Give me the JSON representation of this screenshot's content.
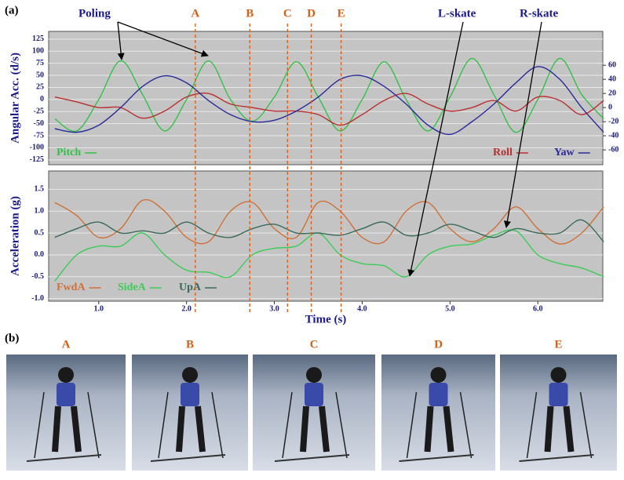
{
  "panel_labels": [
    "(a)",
    "(b)"
  ],
  "annotations": [
    "Poling",
    "L-skate",
    "R-skate"
  ],
  "events": [
    {
      "label": "A",
      "time": 2.1
    },
    {
      "label": "B",
      "time": 2.72
    },
    {
      "label": "C",
      "time": 3.15
    },
    {
      "label": "D",
      "time": 3.42
    },
    {
      "label": "E",
      "time": 3.76
    }
  ],
  "photos": [
    "A",
    "B",
    "C",
    "D",
    "E"
  ],
  "chart_data": [
    {
      "type": "line",
      "ylabel": "Angular Acc. (d/s)",
      "x": [
        0.5,
        0.75,
        1.0,
        1.25,
        1.5,
        1.75,
        2.0,
        2.25,
        2.5,
        2.75,
        3.0,
        3.25,
        3.5,
        3.75,
        4.0,
        4.25,
        4.5,
        4.75,
        5.0,
        5.25,
        5.5,
        5.75,
        6.0,
        6.25,
        6.5,
        6.75
      ],
      "xlim": [
        0.43,
        6.74
      ],
      "ylim": [
        -135,
        141
      ],
      "yticks": [
        125,
        100,
        75,
        50,
        25,
        0,
        -25,
        -50,
        -75,
        -100,
        -125
      ],
      "y2lim": [
        -81,
        108
      ],
      "y2ticks": [
        60,
        40,
        20,
        0,
        -20,
        -40,
        -60
      ],
      "grid": true,
      "series": [
        {
          "name": "Pitch",
          "color": "#35c04a",
          "values": [
            -40,
            -65,
            0,
            80,
            10,
            -65,
            0,
            80,
            0,
            -45,
            5,
            78,
            5,
            -65,
            0,
            78,
            0,
            -65,
            5,
            85,
            10,
            -68,
            0,
            85,
            10,
            -40
          ]
        },
        {
          "name": "Roll",
          "color": "#b83030",
          "axis": "y2",
          "values": [
            15,
            8,
            0,
            0,
            -15,
            -5,
            15,
            20,
            5,
            0,
            -5,
            -5,
            -10,
            -25,
            -10,
            10,
            20,
            5,
            -5,
            0,
            10,
            -5,
            15,
            10,
            -10,
            10
          ]
        },
        {
          "name": "Yaw",
          "color": "#2a2a9a",
          "axis": "y2",
          "values": [
            -30,
            -35,
            -25,
            0,
            30,
            45,
            35,
            10,
            -10,
            -20,
            -18,
            -5,
            15,
            40,
            45,
            30,
            5,
            -25,
            -38,
            -20,
            5,
            35,
            58,
            40,
            0,
            -35
          ]
        }
      ]
    },
    {
      "type": "line",
      "ylabel": "Acceleration (g)",
      "xlabel": "Time (s)",
      "x": [
        0.5,
        0.75,
        1.0,
        1.25,
        1.5,
        1.75,
        2.0,
        2.25,
        2.5,
        2.75,
        3.0,
        3.25,
        3.5,
        3.75,
        4.0,
        4.25,
        4.5,
        4.75,
        5.0,
        5.25,
        5.5,
        5.75,
        6.0,
        6.25,
        6.5,
        6.75
      ],
      "xlim": [
        0.43,
        6.74
      ],
      "xticks": [
        {
          "value": 1,
          "label": "1.0"
        },
        {
          "value": 2,
          "label": "2.0"
        },
        {
          "value": 3,
          "label": "3.0"
        },
        {
          "value": 4,
          "label": "4.0"
        },
        {
          "value": 5,
          "label": "5.0"
        },
        {
          "value": 6,
          "label": "6.0"
        }
      ],
      "ylim": [
        -1.06,
        1.92
      ],
      "yticks": [
        1.5,
        {
          "value": 1,
          "label": "1.0"
        },
        0.5,
        {
          "value": 0,
          "label": "0.0"
        },
        -0.5,
        {
          "value": -1,
          "label": "-1.0"
        }
      ],
      "grid": true,
      "series": [
        {
          "name": "FwdA",
          "color": "#d07038",
          "values": [
            1.2,
            0.9,
            0.4,
            0.6,
            1.25,
            1.0,
            0.4,
            0.3,
            1.0,
            1.2,
            0.6,
            0.4,
            1.2,
            1.0,
            0.4,
            0.3,
            1.0,
            1.2,
            0.6,
            0.3,
            0.6,
            1.1,
            0.6,
            0.25,
            0.5,
            1.1
          ]
        },
        {
          "name": "SideA",
          "color": "#3ccc58",
          "values": [
            -0.6,
            0.0,
            0.2,
            0.2,
            0.5,
            0.0,
            -0.35,
            -0.4,
            -0.5,
            0.0,
            0.15,
            0.2,
            0.5,
            0.0,
            -0.2,
            -0.25,
            -0.5,
            0.0,
            0.2,
            0.25,
            0.45,
            0.55,
            0.0,
            -0.2,
            -0.3,
            -0.5
          ]
        },
        {
          "name": "UpA",
          "color": "#3a6a5a",
          "values": [
            0.4,
            0.6,
            0.75,
            0.5,
            0.55,
            0.5,
            0.75,
            0.5,
            0.4,
            0.6,
            0.7,
            0.5,
            0.5,
            0.45,
            0.6,
            0.75,
            0.45,
            0.5,
            0.7,
            0.55,
            0.4,
            0.6,
            0.5,
            0.5,
            0.8,
            0.3
          ]
        }
      ]
    }
  ]
}
